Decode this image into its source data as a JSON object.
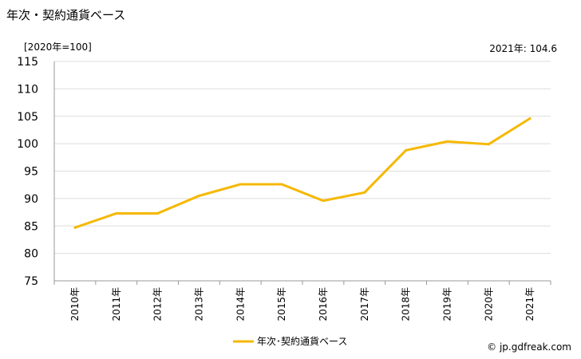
{
  "title": "年次・契約通貨ベース",
  "unit_label": "[2020年=100]",
  "latest_label": "2021年: 104.6",
  "credit": "© jp.gdfreak.com",
  "colors": {
    "line": "#f5b800",
    "grid": "#dddddd",
    "axis": "#999999"
  },
  "chart_data": {
    "type": "line",
    "title": "年次・契約通貨ベース",
    "categories": [
      "2010年",
      "2011年",
      "2012年",
      "2013年",
      "2014年",
      "2015年",
      "2016年",
      "2017年",
      "2018年",
      "2019年",
      "2020年",
      "2021年"
    ],
    "series": [
      {
        "name": "年次･契約通貨ベース",
        "values": [
          84.7,
          87.3,
          87.3,
          90.5,
          92.6,
          92.6,
          89.6,
          91.1,
          98.8,
          100.4,
          99.9,
          104.6
        ]
      }
    ],
    "yticks": [
      75,
      80,
      85,
      90,
      95,
      100,
      105,
      110,
      115
    ],
    "ylim": [
      75,
      115
    ],
    "grid": true,
    "legend": "bottom-center"
  }
}
